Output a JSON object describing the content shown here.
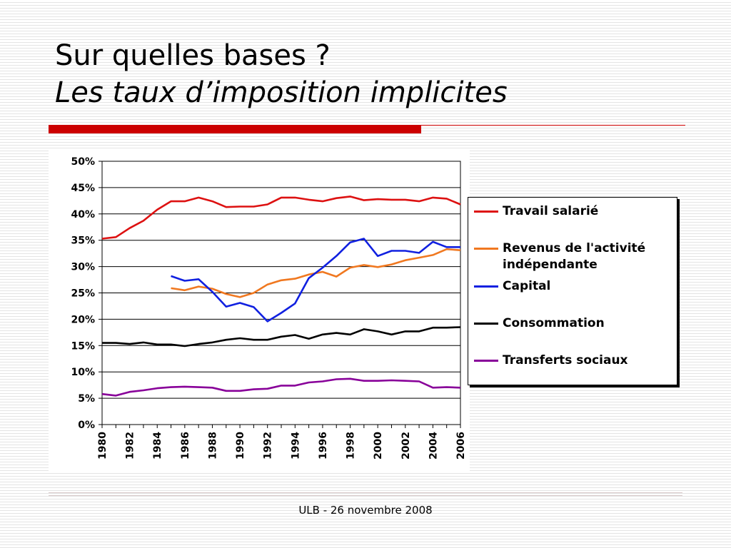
{
  "slide": {
    "title_line1": "Sur quelles bases ?",
    "title_line2": "Les taux d’imposition implicites",
    "footer": "ULB - 26 novembre 2008",
    "accent_color": "#cc0000"
  },
  "chart_data": {
    "type": "line",
    "title": "",
    "xlabel": "",
    "ylabel": "",
    "ylim": [
      0,
      0.5
    ],
    "y_ticks": [
      "50%",
      "45%",
      "40%",
      "35%",
      "30%",
      "25%",
      "20%",
      "15%",
      "10%",
      "5%",
      "0%"
    ],
    "x_ticks": [
      "1980",
      "1982",
      "1984",
      "1986",
      "1988",
      "1990",
      "1992",
      "1994",
      "1996",
      "1998",
      "2000",
      "2002",
      "2004",
      "2006"
    ],
    "grid": "horizontal",
    "legend_position": "right",
    "x": [
      1980,
      1981,
      1982,
      1983,
      1984,
      1985,
      1986,
      1987,
      1988,
      1989,
      1990,
      1991,
      1992,
      1993,
      1994,
      1995,
      1996,
      1997,
      1998,
      1999,
      2000,
      2001,
      2002,
      2003,
      2004,
      2005,
      2006
    ],
    "series": [
      {
        "name": "Travail salarié",
        "color": "#dd1111",
        "values": [
          0.353,
          0.356,
          0.373,
          0.387,
          0.408,
          0.424,
          0.424,
          0.431,
          0.424,
          0.413,
          0.414,
          0.414,
          0.418,
          0.431,
          0.431,
          0.427,
          0.424,
          0.43,
          0.433,
          0.426,
          0.428,
          0.427,
          0.427,
          0.424,
          0.431,
          0.429,
          0.418
        ]
      },
      {
        "name": "Revenus de l'activité indépendante",
        "color": "#f07820",
        "values": [
          null,
          null,
          null,
          null,
          null,
          0.259,
          0.255,
          0.262,
          0.258,
          0.248,
          0.242,
          0.25,
          0.266,
          0.274,
          0.277,
          0.285,
          0.29,
          0.281,
          0.298,
          0.303,
          0.299,
          0.304,
          0.312,
          0.317,
          0.322,
          0.333,
          0.331
        ]
      },
      {
        "name": "Capital",
        "color": "#1020e0",
        "values": [
          null,
          null,
          null,
          null,
          null,
          0.282,
          0.273,
          0.276,
          0.252,
          0.224,
          0.231,
          0.223,
          0.196,
          0.212,
          0.23,
          0.278,
          0.298,
          0.32,
          0.346,
          0.353,
          0.32,
          0.33,
          0.33,
          0.326,
          0.347,
          0.337,
          0.337
        ]
      },
      {
        "name": "Consommation",
        "color": "#000000",
        "values": [
          0.155,
          0.155,
          0.153,
          0.156,
          0.152,
          0.152,
          0.149,
          0.153,
          0.156,
          0.161,
          0.164,
          0.161,
          0.161,
          0.167,
          0.17,
          0.163,
          0.171,
          0.174,
          0.171,
          0.181,
          0.177,
          0.171,
          0.177,
          0.177,
          0.184,
          0.184,
          0.185
        ]
      },
      {
        "name": "Transferts sociaux",
        "color": "#880099",
        "values": [
          0.058,
          0.055,
          0.062,
          0.065,
          0.069,
          0.071,
          0.072,
          0.071,
          0.07,
          0.064,
          0.064,
          0.067,
          0.068,
          0.074,
          0.074,
          0.08,
          0.082,
          0.086,
          0.087,
          0.083,
          0.083,
          0.084,
          0.083,
          0.082,
          0.07,
          0.071,
          0.07
        ]
      }
    ]
  }
}
